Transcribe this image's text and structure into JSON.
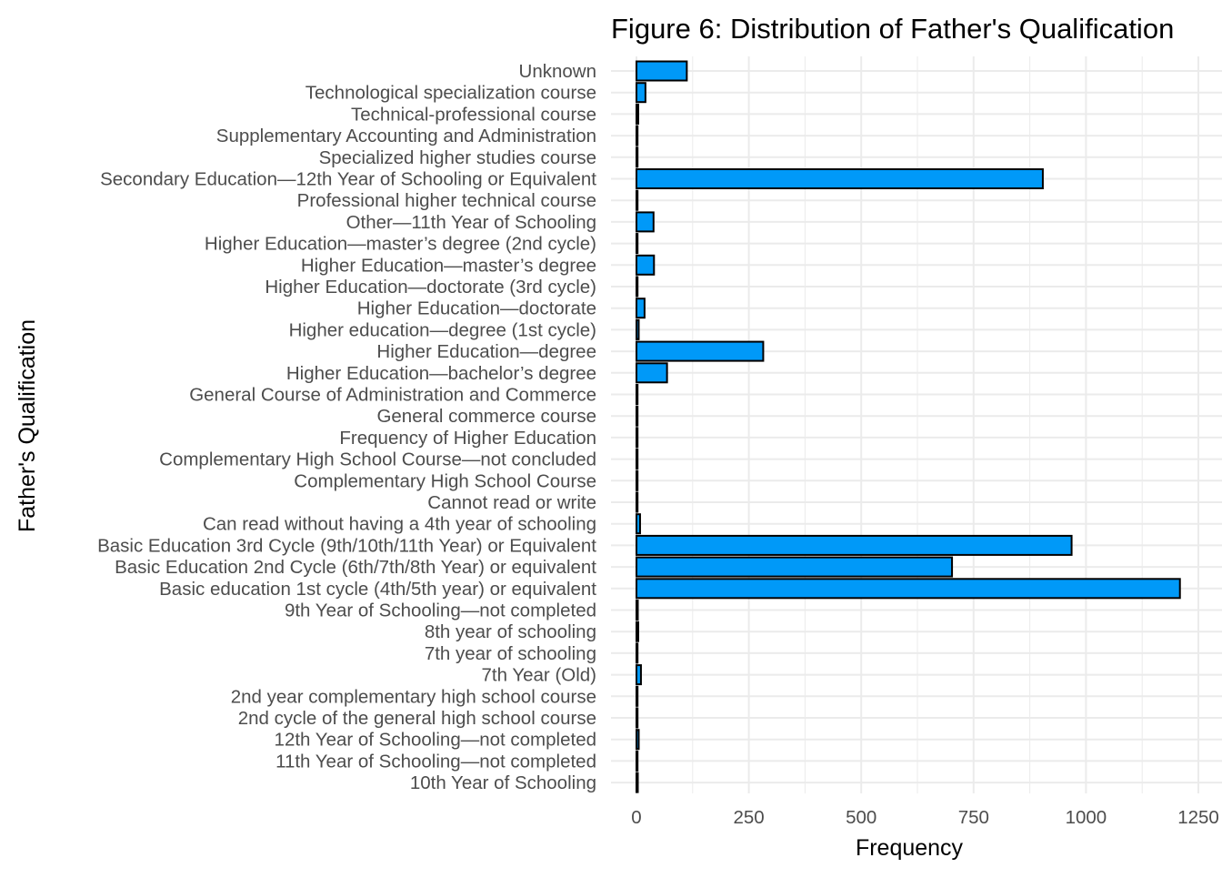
{
  "chart_data": {
    "type": "bar",
    "orientation": "horizontal",
    "title": "Figure 6: Distribution of Father's Qualification",
    "xlabel": "Frequency",
    "ylabel": "Father's Qualification",
    "xlim": [
      0,
      1250
    ],
    "x_ticks": [
      "0",
      "250",
      "500",
      "750",
      "1000",
      "1250"
    ],
    "x_tick_values": [
      0,
      250,
      500,
      750,
      1000,
      1250
    ],
    "grid": true,
    "legend": "none",
    "bar_color": "#0099f8",
    "bar_outline_color": "#000000",
    "categories": [
      "Unknown",
      "Technological specialization course",
      "Technical-professional course",
      "Supplementary Accounting and Administration",
      "Specialized higher studies course",
      "Secondary Education—12th Year of Schooling or Equivalent",
      "Professional higher technical course",
      "Other—11th Year of Schooling",
      "Higher Education—master’s degree (2nd cycle)",
      "Higher Education—master’s degree",
      "Higher Education—doctorate (3rd cycle)",
      "Higher Education—doctorate",
      "Higher education—degree (1st cycle)",
      "Higher Education—degree",
      "Higher Education—bachelor’s degree",
      "General Course of Administration and Commerce",
      "General commerce course",
      "Frequency of Higher Education",
      "Complementary High School Course—not concluded",
      "Complementary High School Course",
      "Cannot read or write",
      "Can read without having a 4th year of schooling",
      "Basic Education 3rd Cycle (9th/10th/11th Year) or Equivalent",
      "Basic Education 2nd Cycle (6th/7th/8th Year) or equivalent",
      "Basic education 1st cycle (4th/5th year) or equivalent",
      "9th Year of Schooling—not completed",
      "8th year of schooling",
      "7th year of schooling",
      "7th Year (Old)",
      "2nd year complementary high school course",
      "2nd cycle of the general high school course",
      "12th Year of Schooling—not completed",
      "11th Year of Schooling—not completed",
      "10th Year of Schooling"
    ],
    "values": [
      112,
      20,
      4,
      1,
      1,
      904,
      1,
      38,
      2,
      39,
      1,
      18,
      5,
      282,
      68,
      1,
      1,
      1,
      1,
      1,
      1,
      8,
      968,
      702,
      1209,
      3,
      4,
      1,
      10,
      1,
      1,
      5,
      2,
      3
    ]
  }
}
